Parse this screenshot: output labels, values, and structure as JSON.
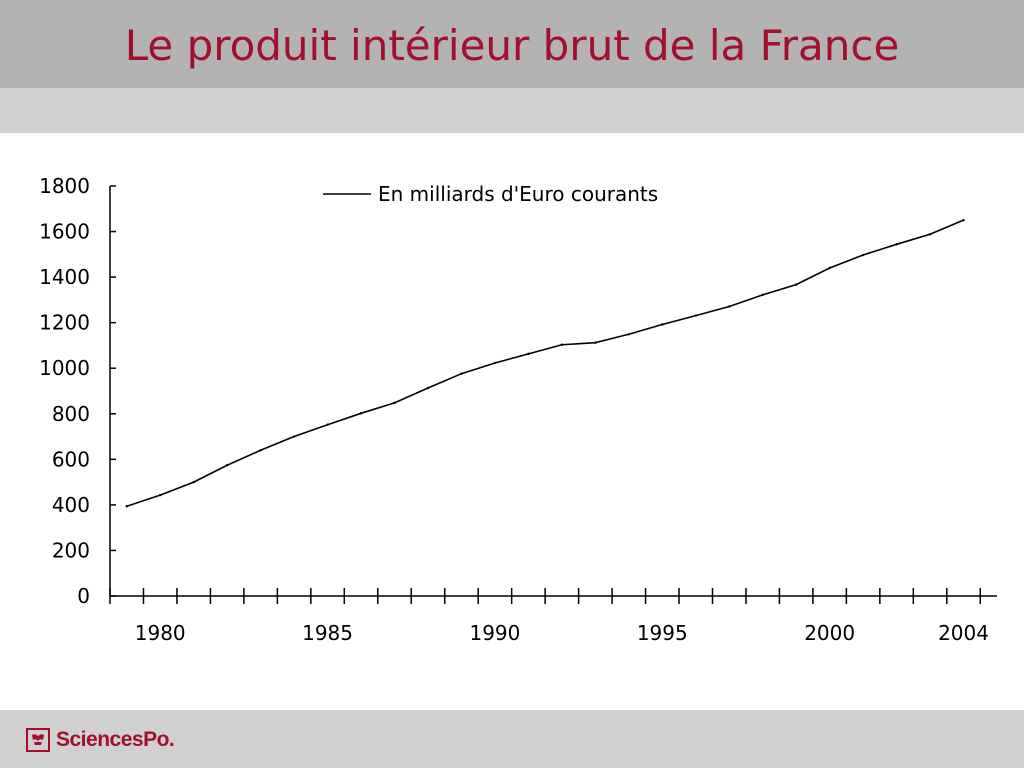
{
  "slide": {
    "title": "Le produit intérieur brut de la France",
    "logo_text": "SciencesPo.",
    "logo_icon": "sciencespo-emblem-icon",
    "accent_color": "#a3102e"
  },
  "chart_data": {
    "type": "line",
    "title": "",
    "xlabel": "",
    "ylabel": "",
    "xlim": [
      1978,
      2004.5
    ],
    "ylim": [
      0,
      1800
    ],
    "yticks": [
      0,
      200,
      400,
      600,
      800,
      1000,
      1200,
      1400,
      1600,
      1800
    ],
    "ytick_labels": [
      "0",
      "200",
      "400",
      "600",
      "800",
      "1000",
      "1200",
      "1400",
      "1600",
      "1800"
    ],
    "xtick_labels": [
      {
        "year": 1980,
        "label": "1980"
      },
      {
        "year": 1985,
        "label": "1985"
      },
      {
        "year": 1990,
        "label": "1990"
      },
      {
        "year": 1995,
        "label": "1995"
      },
      {
        "year": 2000,
        "label": "2000"
      },
      {
        "year": 2004,
        "label": "2004"
      }
    ],
    "legend_position": "top",
    "grid": false,
    "series": [
      {
        "name": "En milliards d'Euro courants",
        "color": "#000000",
        "x": [
          1978.5,
          1979.5,
          1980.5,
          1981.5,
          1982.5,
          1983.5,
          1984.5,
          1985.5,
          1986.5,
          1987.5,
          1988.5,
          1989.5,
          1990.5,
          1991.5,
          1992.5,
          1993.5,
          1994.5,
          1995.5,
          1996.5,
          1997.5,
          1998.5,
          1999.5,
          2000.5,
          2001.5,
          2002.5,
          2003.5
        ],
        "values": [
          394,
          443,
          500,
          574,
          640,
          700,
          752,
          802,
          848,
          913,
          976,
          1023,
          1063,
          1103,
          1112,
          1149,
          1192,
          1231,
          1271,
          1322,
          1367,
          1440,
          1497,
          1544,
          1588,
          1650
        ]
      }
    ]
  }
}
